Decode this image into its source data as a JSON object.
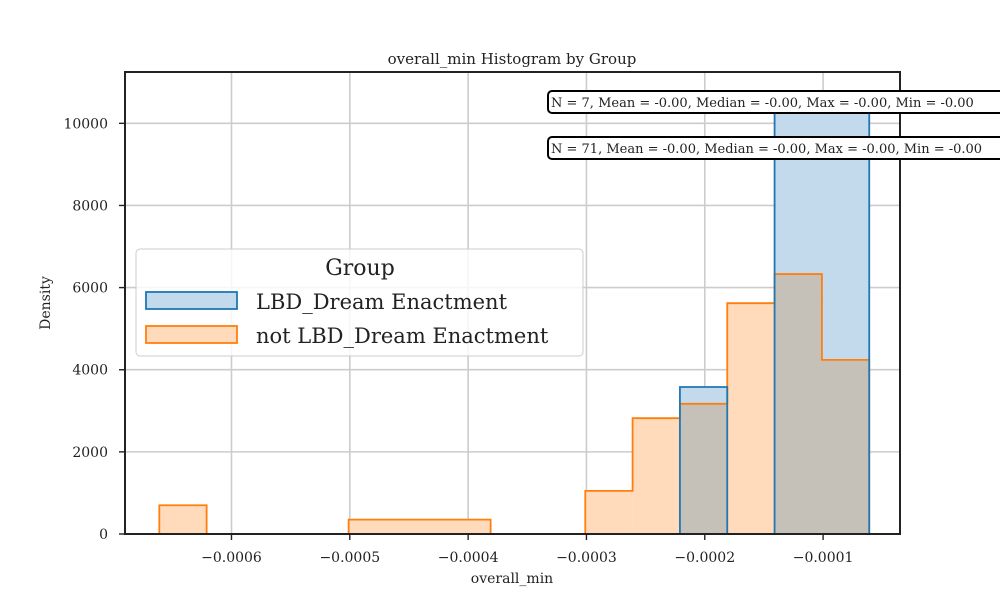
{
  "chart_data": {
    "type": "histogram",
    "title": "overall_min Histogram by Group",
    "xlabel": "overall_min",
    "ylabel": "Density",
    "xlim": [
      -0.00069,
      -3.5e-05
    ],
    "ylim": [
      0,
      11250
    ],
    "x_ticks": [
      {
        "value": -0.0006,
        "label": "−0.0006"
      },
      {
        "value": -0.0005,
        "label": "−0.0005"
      },
      {
        "value": -0.0004,
        "label": "−0.0004"
      },
      {
        "value": -0.0003,
        "label": "−0.0003"
      },
      {
        "value": -0.0002,
        "label": "−0.0002"
      },
      {
        "value": -0.0001,
        "label": "−0.0001"
      }
    ],
    "y_ticks": [
      {
        "value": 0,
        "label": "0"
      },
      {
        "value": 2000,
        "label": "2000"
      },
      {
        "value": 4000,
        "label": "4000"
      },
      {
        "value": 6000,
        "label": "6000"
      },
      {
        "value": 8000,
        "label": "8000"
      },
      {
        "value": 10000,
        "label": "10000"
      }
    ],
    "grid": true,
    "legend": {
      "title": "Group",
      "position": "center-left"
    },
    "series": [
      {
        "name": "LBD_Dream Enactment",
        "edge_color": "#1f77b4",
        "fill_color": "#c3d9ec",
        "bins": [
          {
            "x0": -0.000221,
            "x1": -0.000181,
            "density": 3580
          },
          {
            "x0": -0.000181,
            "x1": -0.000141,
            "density": 0
          },
          {
            "x0": -0.000141,
            "x1": -6.1e-05,
            "density": 10300
          }
        ]
      },
      {
        "name": "not LBD_Dream Enactment",
        "edge_color": "#ff7f0e",
        "fill_color": "#ffdabb",
        "bins": [
          {
            "x0": -0.000661,
            "x1": -0.000621,
            "density": 700
          },
          {
            "x0": -0.000621,
            "x1": -0.000501,
            "density": 0
          },
          {
            "x0": -0.000501,
            "x1": -0.000381,
            "density": 350
          },
          {
            "x0": -0.000381,
            "x1": -0.000301,
            "density": 0
          },
          {
            "x0": -0.000301,
            "x1": -0.000261,
            "density": 1050
          },
          {
            "x0": -0.000261,
            "x1": -0.000221,
            "density": 2820
          },
          {
            "x0": -0.000221,
            "x1": -0.000181,
            "density": 3170
          },
          {
            "x0": -0.000181,
            "x1": -0.000141,
            "density": 5620
          },
          {
            "x0": -0.000141,
            "x1": -0.000101,
            "density": 6330
          },
          {
            "x0": -0.000101,
            "x1": -6.1e-05,
            "density": 4240
          }
        ]
      }
    ],
    "overlap_color": "#c6c1b8",
    "annotations": [
      {
        "text": "N = 7, Mean = -0.00, Median = -0.00, Max = -0.00, Min = -0.00"
      },
      {
        "text": "N = 71, Mean = -0.00, Median = -0.00, Max = -0.00, Min = -0.00"
      }
    ]
  }
}
